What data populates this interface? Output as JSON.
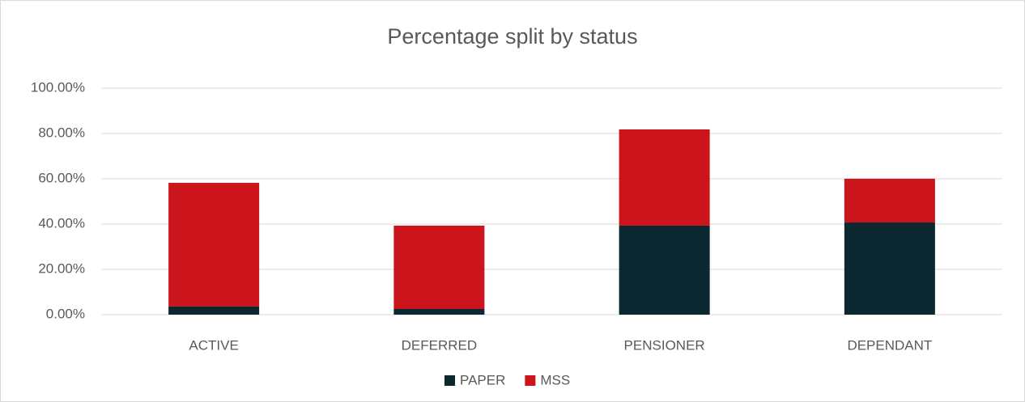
{
  "chart_data": {
    "type": "stacked_bar",
    "title": "Percentage split by status",
    "categories": [
      "ACTIVE",
      "DEFERRED",
      "PENSIONER",
      "DEPENDANT"
    ],
    "series": [
      {
        "name": "PAPER",
        "color": "#0b2830",
        "values": [
          3.6,
          2.5,
          39.3,
          40.7
        ]
      },
      {
        "name": "MSS",
        "color": "#cc141c",
        "values": [
          54.6,
          36.8,
          42.5,
          19.3
        ]
      }
    ],
    "ylim": [
      0,
      100
    ],
    "yticks": [
      {
        "value": 0,
        "label": "0.00%"
      },
      {
        "value": 20,
        "label": "20.00%"
      },
      {
        "value": 40,
        "label": "40.00%"
      },
      {
        "value": 60,
        "label": "60.00%"
      },
      {
        "value": 80,
        "label": "80.00%"
      },
      {
        "value": 100,
        "label": "100.00%"
      }
    ],
    "grid": true,
    "legend": "bottom"
  }
}
